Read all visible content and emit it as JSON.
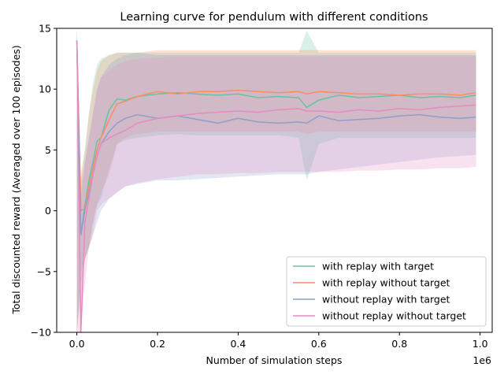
{
  "chart_data": {
    "type": "line",
    "title": "Learning curve for pendulum with different conditions",
    "xlabel": "Number of simulation steps",
    "ylabel": "Total discounted reward (Averaged over 100 episodes)",
    "x_scale_label": "1e6",
    "xlim": [
      -0.05,
      1.03
    ],
    "ylim": [
      -10,
      15
    ],
    "x_ticks": [
      0.0,
      0.2,
      0.4,
      0.6,
      0.8,
      1.0
    ],
    "x_tick_labels": [
      "0.0",
      "0.2",
      "0.4",
      "0.6",
      "0.8",
      "1.0"
    ],
    "y_ticks": [
      -10,
      -5,
      0,
      5,
      10,
      15
    ],
    "y_tick_labels": [
      "−10",
      "−5",
      "0",
      "5",
      "10",
      "15"
    ],
    "grid": false,
    "legend_position": "bottom-right",
    "x": [
      0.0,
      0.01,
      0.02,
      0.03,
      0.04,
      0.05,
      0.06,
      0.08,
      0.1,
      0.12,
      0.15,
      0.2,
      0.25,
      0.3,
      0.35,
      0.4,
      0.45,
      0.5,
      0.55,
      0.57,
      0.6,
      0.65,
      0.7,
      0.75,
      0.8,
      0.85,
      0.9,
      0.95,
      0.99
    ],
    "series": [
      {
        "name": "with replay with target",
        "color": "#66c2a5",
        "values": [
          14,
          -2,
          0.5,
          2.5,
          4,
          5.7,
          6,
          8.3,
          9.2,
          9.1,
          9.4,
          9.6,
          9.7,
          9.6,
          9.5,
          9.6,
          9.3,
          9.4,
          9.3,
          8.5,
          9.1,
          9.5,
          9.3,
          9.4,
          9.5,
          9.3,
          9.4,
          9.3,
          9.5
        ],
        "upper": [
          15,
          2.5,
          5,
          8,
          10.5,
          12,
          12.5,
          12.8,
          13,
          13,
          13,
          13,
          13,
          13,
          13,
          13,
          13,
          13,
          13,
          14.8,
          13,
          13,
          13,
          13,
          13,
          13,
          13,
          13,
          13
        ],
        "lower": [
          -10,
          -7,
          -4,
          -3,
          -1,
          0.5,
          1,
          3.5,
          5.5,
          5.8,
          6,
          6.2,
          6.3,
          6.2,
          6.2,
          6.2,
          6.2,
          6.2,
          6.0,
          2.5,
          5.5,
          6.0,
          6.0,
          6.0,
          6.0,
          6.0,
          6.0,
          6.0,
          6.0
        ]
      },
      {
        "name": "with replay without target",
        "color": "#fc8d62",
        "values": [
          14,
          0,
          0.2,
          2,
          3.5,
          5,
          6,
          7.5,
          8.8,
          9.0,
          9.4,
          9.8,
          9.6,
          9.8,
          9.8,
          9.9,
          9.8,
          9.7,
          9.8,
          9.6,
          9.8,
          9.7,
          9.6,
          9.6,
          9.5,
          9.6,
          9.6,
          9.5,
          9.7
        ],
        "upper": [
          15,
          3,
          5,
          8,
          10,
          11.5,
          12.3,
          12.8,
          13,
          13,
          13,
          13.2,
          13.2,
          13.2,
          13.2,
          13.2,
          13.2,
          13.2,
          13.2,
          13.2,
          13.2,
          13.2,
          13.2,
          13.2,
          13.2,
          13.2,
          13.2,
          13.2,
          13.2
        ],
        "lower": [
          -10,
          -6,
          -4,
          -3,
          -1,
          0.5,
          1.5,
          3,
          5.5,
          6,
          6.3,
          6.5,
          6.5,
          6.5,
          6.5,
          6.5,
          6.5,
          6.5,
          6.5,
          6.3,
          6.5,
          6.5,
          6.5,
          6.5,
          6.5,
          6.5,
          6.5,
          6.5,
          6.5
        ]
      },
      {
        "name": "without replay with target",
        "color": "#8da0cb",
        "values": [
          14,
          -2,
          0,
          1.5,
          3,
          4.5,
          5.5,
          6.5,
          7.2,
          7.6,
          7.9,
          7.6,
          7.8,
          7.5,
          7.2,
          7.6,
          7.3,
          7.2,
          7.3,
          7.2,
          7.8,
          7.4,
          7.5,
          7.6,
          7.8,
          7.9,
          7.7,
          7.6,
          7.7
        ],
        "upper": [
          15,
          1,
          4,
          6,
          8,
          10,
          11,
          12,
          12.5,
          12.8,
          13,
          12.8,
          12.8,
          12.8,
          12.8,
          12.8,
          12.8,
          12.8,
          12.8,
          12.8,
          12.8,
          12.8,
          12.8,
          12.8,
          12.8,
          12.8,
          12.8,
          12.8,
          12.8
        ],
        "lower": [
          -10,
          -5,
          -4,
          -3,
          -2,
          -1,
          0,
          1,
          1.5,
          2,
          2.2,
          2.5,
          2.5,
          2.6,
          2.7,
          2.8,
          2.9,
          3.0,
          3.0,
          3.0,
          3.2,
          3.4,
          3.6,
          3.8,
          4.0,
          4.2,
          4.4,
          4.5,
          4.6
        ]
      },
      {
        "name": "without replay without target",
        "color": "#e78ac3",
        "values": [
          14,
          -10,
          -1,
          1,
          3,
          4.5,
          5.5,
          6,
          6.3,
          6.6,
          7.2,
          7.6,
          7.8,
          8.0,
          8.1,
          8.2,
          8.1,
          8.3,
          8.4,
          8.2,
          8.2,
          8.1,
          8.3,
          8.2,
          8.4,
          8.3,
          8.5,
          8.6,
          8.7
        ],
        "upper": [
          15,
          2,
          4,
          6,
          8,
          10,
          11,
          11.5,
          12,
          12.3,
          12.5,
          12.6,
          12.7,
          12.7,
          12.7,
          12.7,
          12.7,
          12.7,
          12.7,
          12.7,
          12.7,
          12.7,
          12.7,
          12.7,
          12.7,
          12.7,
          12.7,
          12.7,
          12.7
        ],
        "lower": [
          -10,
          -10,
          -6,
          -3,
          -2,
          0,
          0.5,
          1,
          1.5,
          2.0,
          2.3,
          2.6,
          2.8,
          3.0,
          3.0,
          3.1,
          3.1,
          3.2,
          3.2,
          3.2,
          3.2,
          3.2,
          3.3,
          3.3,
          3.4,
          3.4,
          3.5,
          3.5,
          3.6
        ]
      }
    ]
  }
}
